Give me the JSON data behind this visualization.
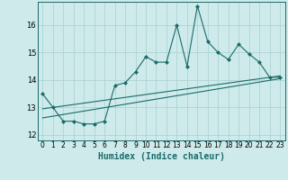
{
  "title": "",
  "xlabel": "Humidex (Indice chaleur)",
  "ylabel": "",
  "bg_color": "#ceeaea",
  "grid_color": "#aed4d4",
  "line_color": "#1a6b6b",
  "xlim": [
    -0.5,
    23.5
  ],
  "ylim": [
    11.8,
    16.85
  ],
  "yticks": [
    12,
    13,
    14,
    15,
    16
  ],
  "xticks": [
    0,
    1,
    2,
    3,
    4,
    5,
    6,
    7,
    8,
    9,
    10,
    11,
    12,
    13,
    14,
    15,
    16,
    17,
    18,
    19,
    20,
    21,
    22,
    23
  ],
  "main_x": [
    0,
    1,
    2,
    3,
    4,
    5,
    6,
    7,
    8,
    9,
    10,
    11,
    12,
    13,
    14,
    15,
    16,
    17,
    18,
    19,
    20,
    21,
    22,
    23
  ],
  "main_y": [
    13.5,
    13.0,
    12.5,
    12.5,
    12.4,
    12.4,
    12.5,
    13.8,
    13.9,
    14.3,
    14.85,
    14.65,
    14.65,
    16.0,
    14.5,
    16.7,
    15.4,
    15.0,
    14.75,
    15.3,
    14.95,
    14.65,
    14.1,
    14.1
  ],
  "line1_x": [
    0,
    23
  ],
  "line1_y": [
    12.95,
    14.15
  ],
  "line2_x": [
    0,
    23
  ],
  "line2_y": [
    12.62,
    14.05
  ],
  "marker_style": "D",
  "marker_size": 2.0,
  "line_width": 0.8,
  "xlabel_fontsize": 7.0,
  "tick_fontsize": 5.5
}
